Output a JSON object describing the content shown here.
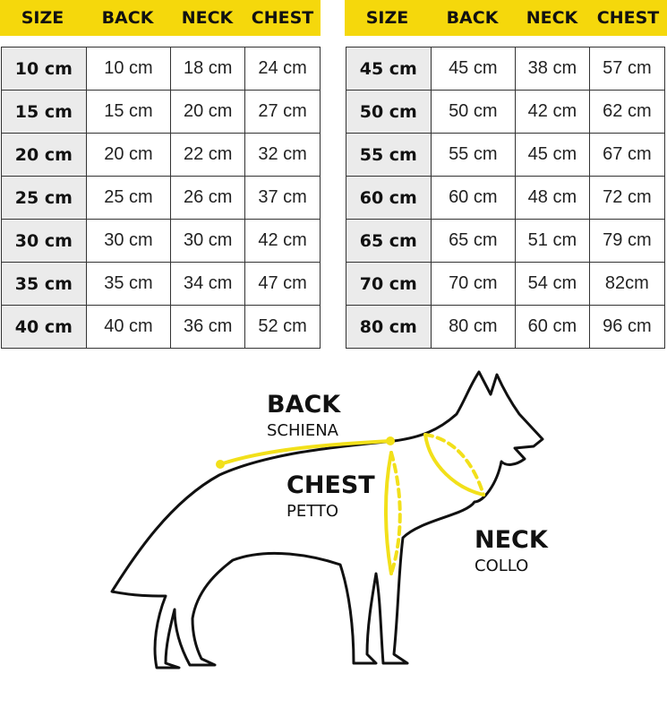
{
  "headers": [
    "SIZE",
    "BACK",
    "NECK",
    "CHEST"
  ],
  "left_table": [
    [
      "10 cm",
      "10 cm",
      "18 cm",
      "24 cm"
    ],
    [
      "15 cm",
      "15 cm",
      "20 cm",
      "27 cm"
    ],
    [
      "20 cm",
      "20 cm",
      "22 cm",
      "32 cm"
    ],
    [
      "25 cm",
      "25 cm",
      "26 cm",
      "37 cm"
    ],
    [
      "30 cm",
      "30 cm",
      "30 cm",
      "42 cm"
    ],
    [
      "35 cm",
      "35 cm",
      "34 cm",
      "47 cm"
    ],
    [
      "40 cm",
      "40 cm",
      "36 cm",
      "52 cm"
    ]
  ],
  "right_table": [
    [
      "45 cm",
      "45 cm",
      "38 cm",
      "57 cm"
    ],
    [
      "50 cm",
      "50 cm",
      "42 cm",
      "62 cm"
    ],
    [
      "55 cm",
      "55 cm",
      "45 cm",
      "67 cm"
    ],
    [
      "60 cm",
      "60 cm",
      "48 cm",
      "72 cm"
    ],
    [
      "65 cm",
      "65 cm",
      "51 cm",
      "79 cm"
    ],
    [
      "70 cm",
      "70 cm",
      "54 cm",
      "82cm"
    ],
    [
      "80 cm",
      "80 cm",
      "60 cm",
      "96 cm"
    ]
  ],
  "diagram": {
    "back": {
      "title": "BACK",
      "subtitle": "SCHIENA"
    },
    "chest": {
      "title": "CHEST",
      "subtitle": "PETTO"
    },
    "neck": {
      "title": "NECK",
      "subtitle": "COLLO"
    }
  },
  "colors": {
    "header_yellow": "#f5d80c",
    "measure_yellow": "#f2e01a",
    "size_cell": "#ebebeb"
  }
}
